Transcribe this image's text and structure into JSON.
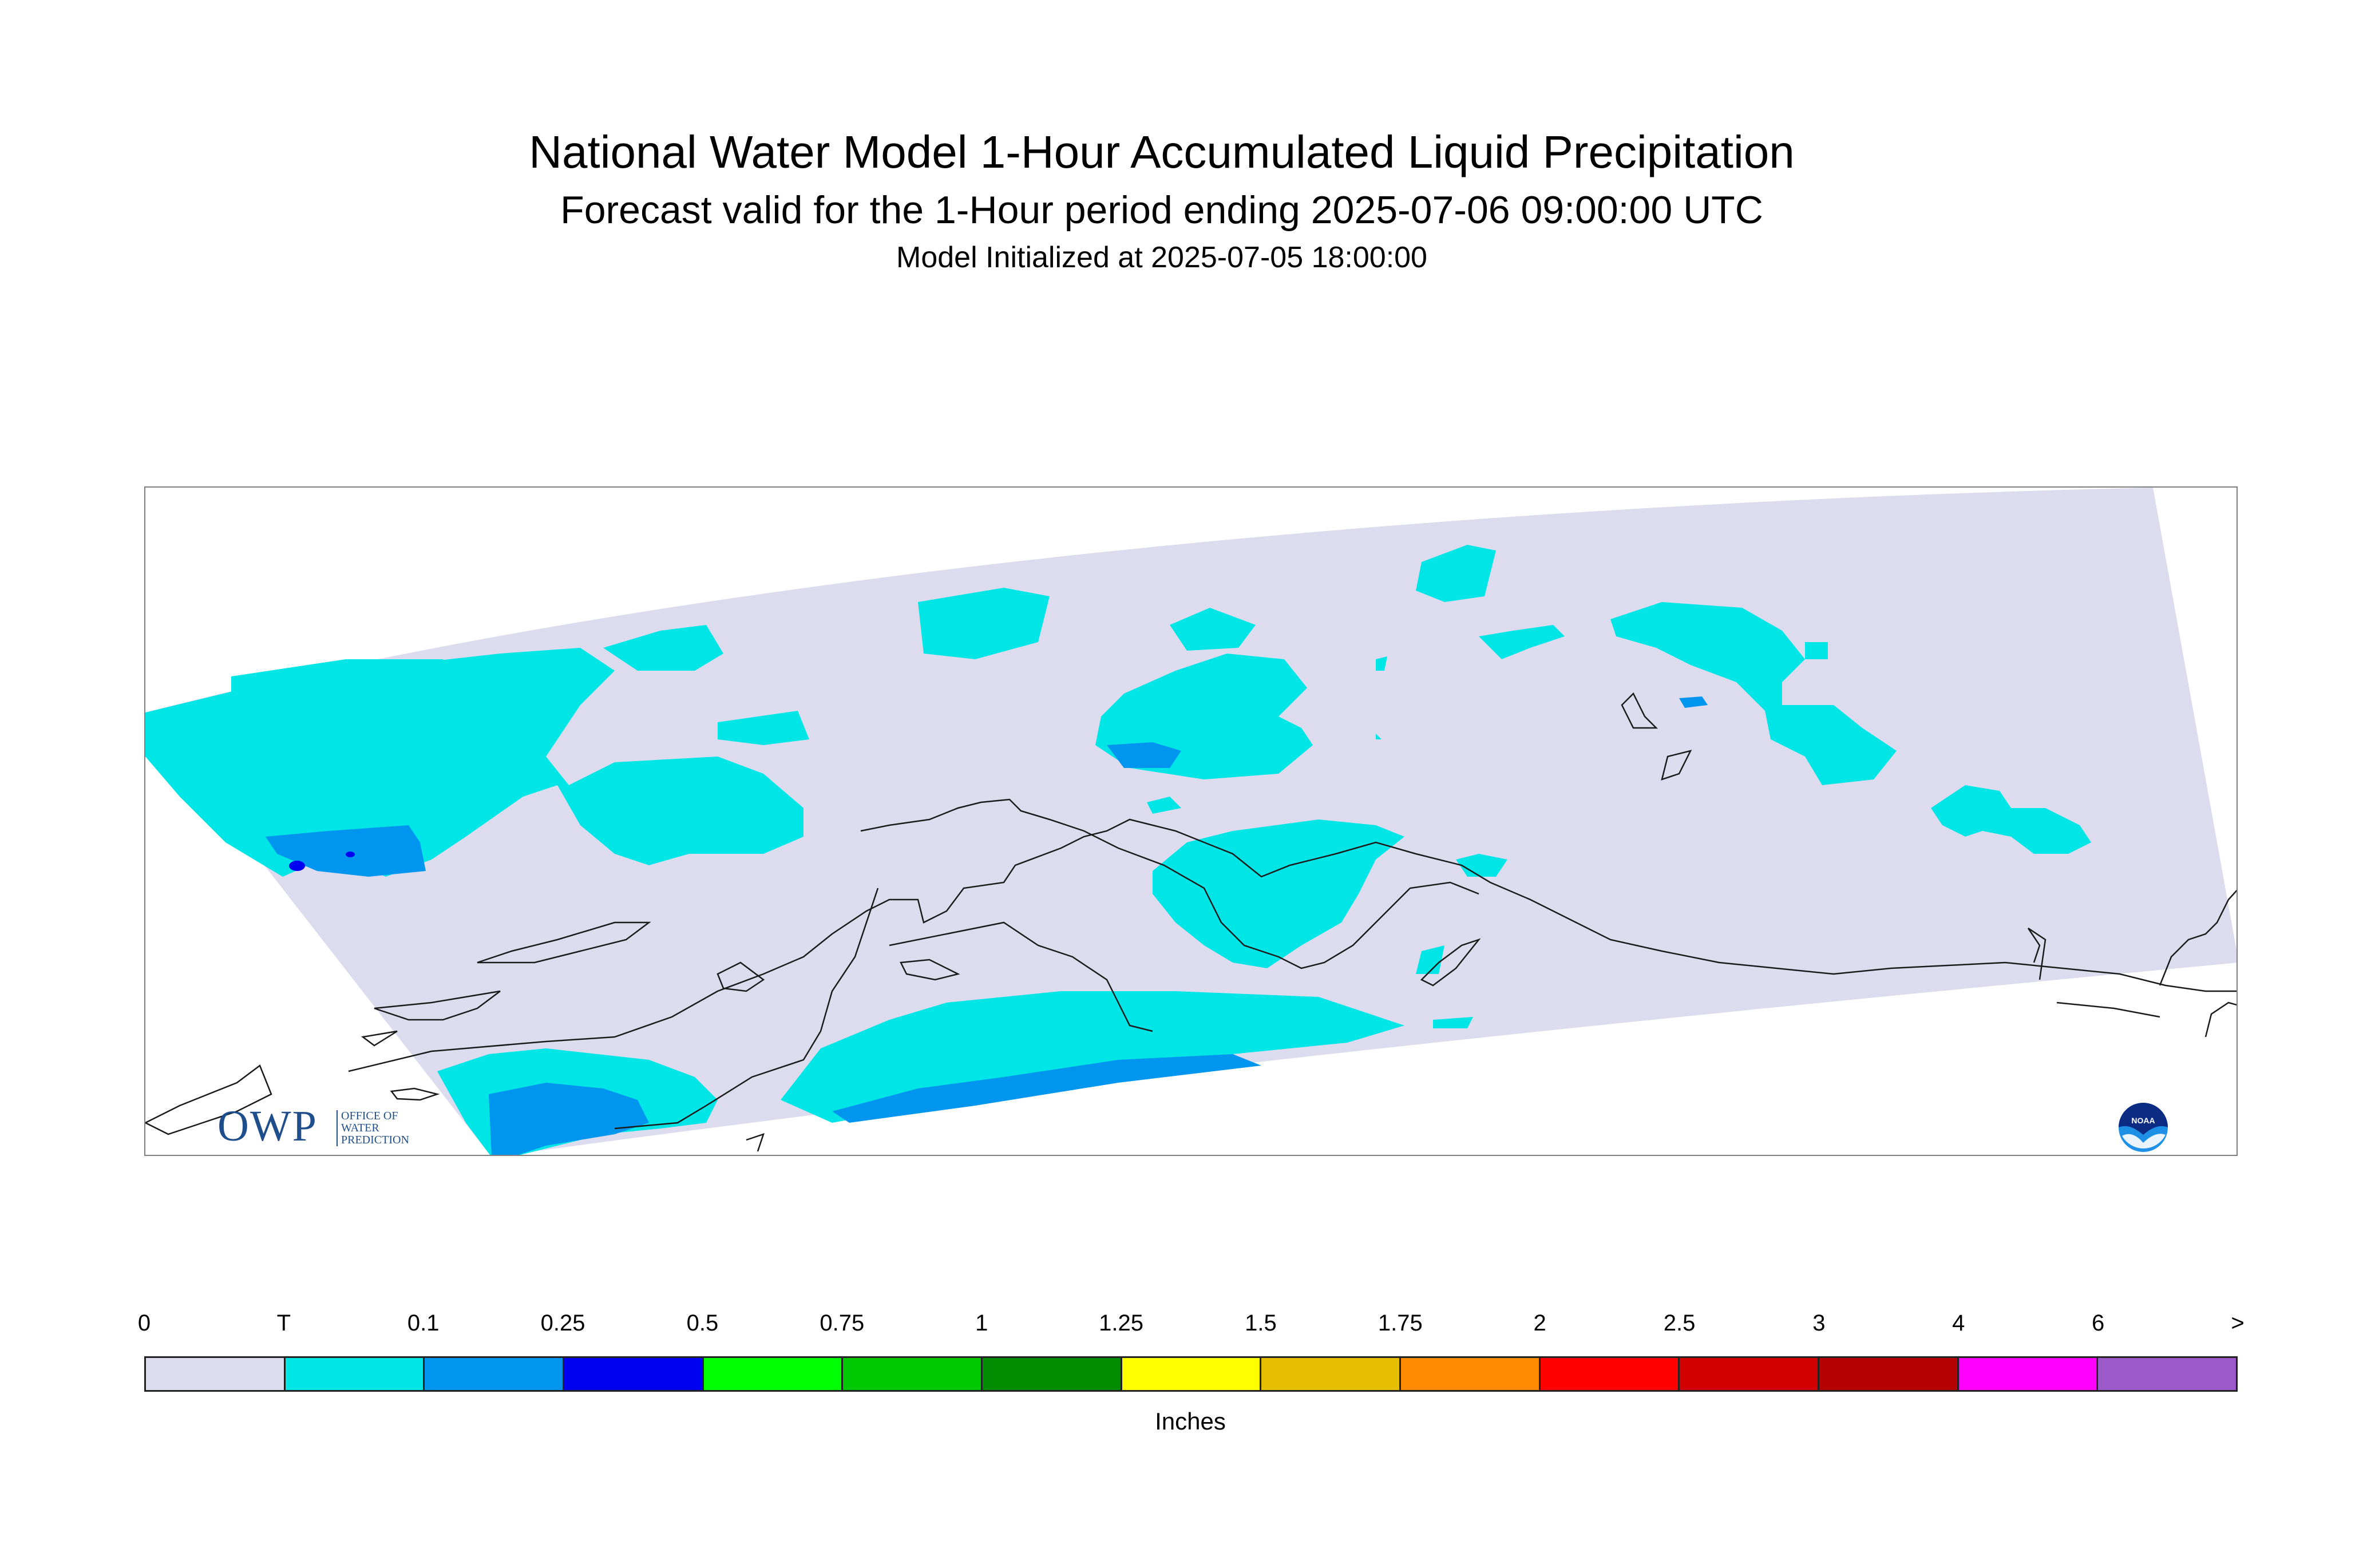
{
  "header": {
    "title": "National Water Model 1-Hour Accumulated Liquid Precipitation",
    "subtitle": "Forecast valid for the 1-Hour period ending 2025-07-06 09:00:00 UTC",
    "init": "Model Initialized at 2025-07-05 18:00:00"
  },
  "logos": {
    "owp_mark": "OWP",
    "owp_subtext": [
      "OFFICE OF",
      "WATER",
      "PREDICTION"
    ],
    "noaa_text": "NOAA"
  },
  "legend": {
    "units": "Inches",
    "tick_labels": [
      "0",
      "T",
      "0.1",
      "0.25",
      "0.5",
      "0.75",
      "1",
      "1.25",
      "1.5",
      "1.75",
      "2",
      "2.5",
      "3",
      "4",
      "6",
      ">"
    ],
    "colors": [
      "#dcdcee",
      "#00e6e6",
      "#0096f0",
      "#0000f0",
      "#00ff00",
      "#00c800",
      "#008c00",
      "#ffff00",
      "#e6be00",
      "#ff8c00",
      "#ff0000",
      "#d20000",
      "#b40000",
      "#ff00ff",
      "#9b59c9"
    ]
  },
  "colors": {
    "domain_background": "#dcdcee",
    "trace": "#00e6e6",
    "light": "#0096f0",
    "moderate": "#0000f0",
    "coastline": "#1a1a1a"
  }
}
